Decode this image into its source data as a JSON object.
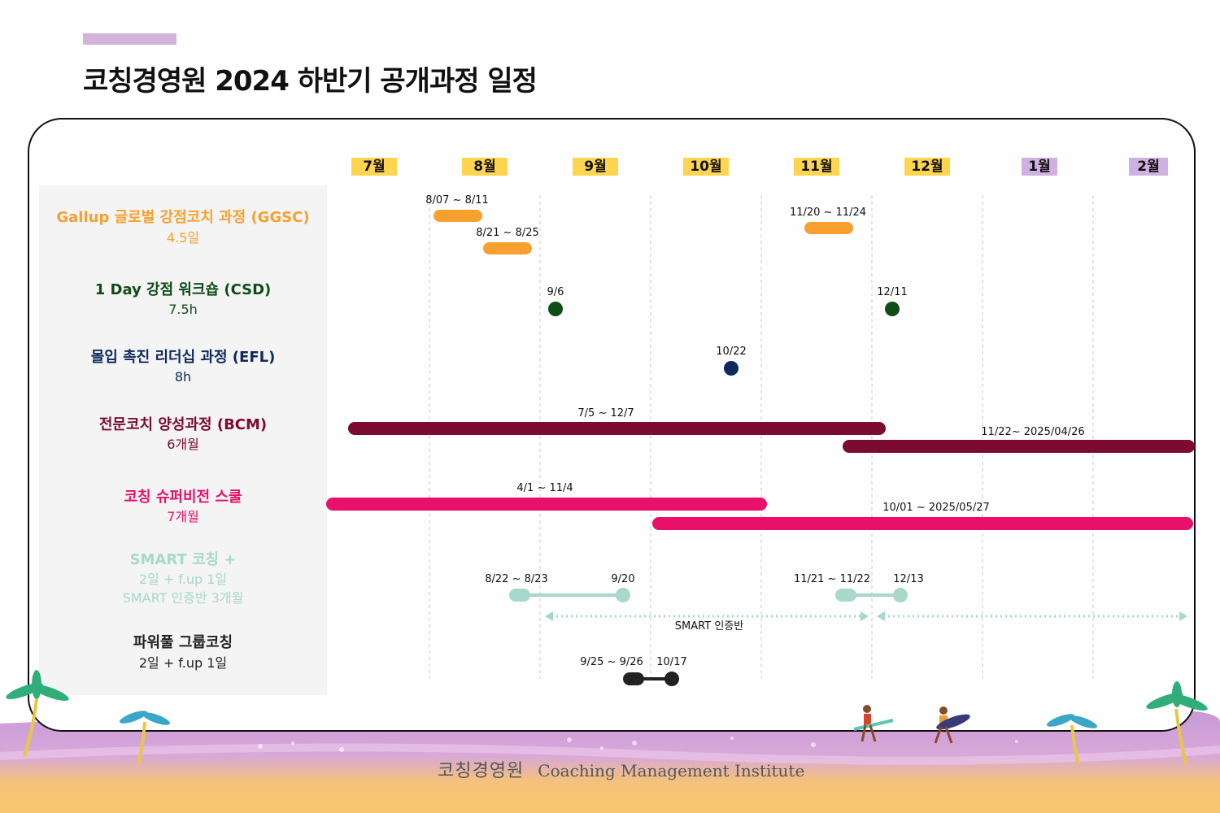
{
  "title": "코칭경영원 2024 하반기 공개과정 일정",
  "months": [
    {
      "label": "7월",
      "color": "#ffd54f"
    },
    {
      "label": "8월",
      "color": "#ffd54f"
    },
    {
      "label": "9월",
      "color": "#ffd54f"
    },
    {
      "label": "10월",
      "color": "#ffd54f"
    },
    {
      "label": "11월",
      "color": "#ffd54f"
    },
    {
      "label": "12월",
      "color": "#ffd54f"
    },
    {
      "label": "1월",
      "color": "#cfb0e0"
    },
    {
      "label": "2월",
      "color": "#cfb0e0"
    }
  ],
  "courses": [
    {
      "name": "Gallup 글로벌 강점코치 과정 (GGSC)",
      "sub": "4.5일",
      "color": "#f7a030"
    },
    {
      "name": "1 Day 강점 워크숍 (CSD)",
      "sub": "7.5h",
      "color": "#0f4d18"
    },
    {
      "name": "몰입 촉진 리더십 과정 (EFL)",
      "sub": "8h",
      "color": "#0e2a5c"
    },
    {
      "name": "전문코치 양성과정 (BCM)",
      "sub": "6개월",
      "color": "#7d0a30"
    },
    {
      "name": "코칭 슈퍼비전 스쿨",
      "sub": "7개월",
      "color": "#e8106a"
    },
    {
      "name": "SMART 코칭 +",
      "sub": "2일 + f.up 1일",
      "sub2": "SMART 인증반 3개월",
      "color": "#a7d8cc"
    },
    {
      "name": "파워풀 그룹코칭",
      "sub": "2일 + f.up 1일",
      "color": "#222222"
    }
  ],
  "schedule_labels": {
    "ggsc_1": "8/07 ~ 8/11",
    "ggsc_2": "8/21 ~ 8/25",
    "ggsc_3": "11/20 ~ 11/24",
    "csd_1": "9/6",
    "csd_2": "12/11",
    "efl_1": "10/22",
    "bcm_1": "7/5 ~ 12/7",
    "bcm_2": "11/22~ 2025/04/26",
    "svs_1": "4/1 ~ 11/4",
    "svs_2": "10/01 ~ 2025/05/27",
    "smart_1a": "8/22 ~ 8/23",
    "smart_1b": "9/20",
    "smart_2a": "11/21 ~ 11/22",
    "smart_2b": "12/13",
    "smart_cert": "SMART 인증반",
    "pgc_1a": "9/25 ~ 9/26",
    "pgc_1b": "10/17"
  },
  "logo": {
    "korean": "코칭경영원",
    "english": "Coaching Management Institute"
  }
}
